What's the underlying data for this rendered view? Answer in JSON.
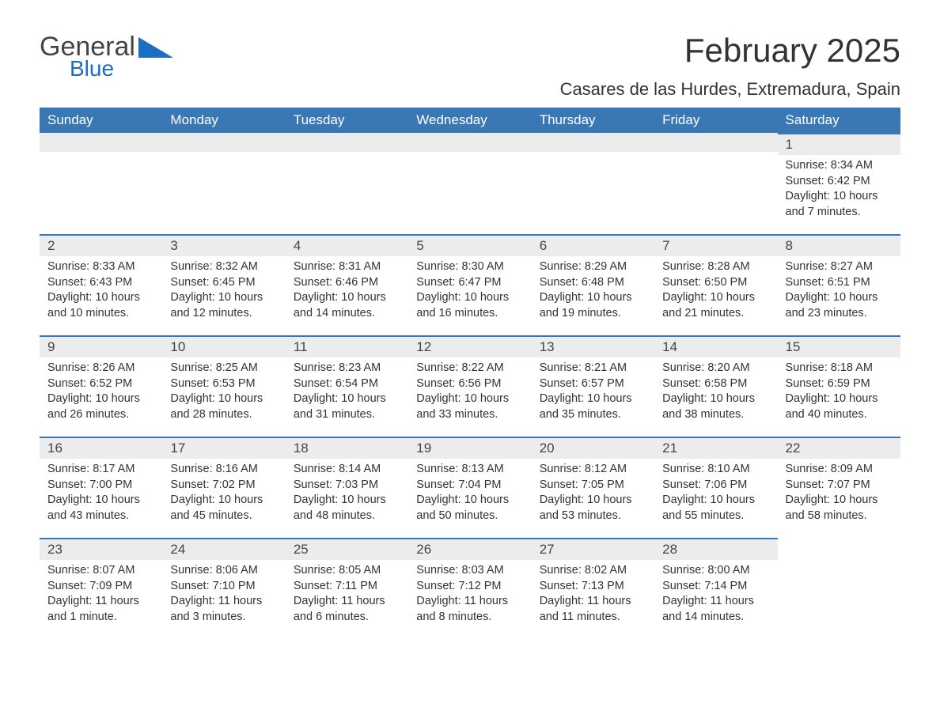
{
  "logo": {
    "text1": "General",
    "text2": "Blue",
    "brand_color": "#1b6ec2"
  },
  "title": "February 2025",
  "location": "Casares de las Hurdes, Extremadura, Spain",
  "colors": {
    "header_bg": "#3a78b5",
    "header_text": "#ffffff",
    "daynum_bg": "#ececec",
    "row_border": "#3a78b5",
    "body_text": "#333333"
  },
  "weekdays": [
    "Sunday",
    "Monday",
    "Tuesday",
    "Wednesday",
    "Thursday",
    "Friday",
    "Saturday"
  ],
  "leading_blanks": 6,
  "days": [
    {
      "n": "1",
      "sunrise": "Sunrise: 8:34 AM",
      "sunset": "Sunset: 6:42 PM",
      "daylight": "Daylight: 10 hours and 7 minutes."
    },
    {
      "n": "2",
      "sunrise": "Sunrise: 8:33 AM",
      "sunset": "Sunset: 6:43 PM",
      "daylight": "Daylight: 10 hours and 10 minutes."
    },
    {
      "n": "3",
      "sunrise": "Sunrise: 8:32 AM",
      "sunset": "Sunset: 6:45 PM",
      "daylight": "Daylight: 10 hours and 12 minutes."
    },
    {
      "n": "4",
      "sunrise": "Sunrise: 8:31 AM",
      "sunset": "Sunset: 6:46 PM",
      "daylight": "Daylight: 10 hours and 14 minutes."
    },
    {
      "n": "5",
      "sunrise": "Sunrise: 8:30 AM",
      "sunset": "Sunset: 6:47 PM",
      "daylight": "Daylight: 10 hours and 16 minutes."
    },
    {
      "n": "6",
      "sunrise": "Sunrise: 8:29 AM",
      "sunset": "Sunset: 6:48 PM",
      "daylight": "Daylight: 10 hours and 19 minutes."
    },
    {
      "n": "7",
      "sunrise": "Sunrise: 8:28 AM",
      "sunset": "Sunset: 6:50 PM",
      "daylight": "Daylight: 10 hours and 21 minutes."
    },
    {
      "n": "8",
      "sunrise": "Sunrise: 8:27 AM",
      "sunset": "Sunset: 6:51 PM",
      "daylight": "Daylight: 10 hours and 23 minutes."
    },
    {
      "n": "9",
      "sunrise": "Sunrise: 8:26 AM",
      "sunset": "Sunset: 6:52 PM",
      "daylight": "Daylight: 10 hours and 26 minutes."
    },
    {
      "n": "10",
      "sunrise": "Sunrise: 8:25 AM",
      "sunset": "Sunset: 6:53 PM",
      "daylight": "Daylight: 10 hours and 28 minutes."
    },
    {
      "n": "11",
      "sunrise": "Sunrise: 8:23 AM",
      "sunset": "Sunset: 6:54 PM",
      "daylight": "Daylight: 10 hours and 31 minutes."
    },
    {
      "n": "12",
      "sunrise": "Sunrise: 8:22 AM",
      "sunset": "Sunset: 6:56 PM",
      "daylight": "Daylight: 10 hours and 33 minutes."
    },
    {
      "n": "13",
      "sunrise": "Sunrise: 8:21 AM",
      "sunset": "Sunset: 6:57 PM",
      "daylight": "Daylight: 10 hours and 35 minutes."
    },
    {
      "n": "14",
      "sunrise": "Sunrise: 8:20 AM",
      "sunset": "Sunset: 6:58 PM",
      "daylight": "Daylight: 10 hours and 38 minutes."
    },
    {
      "n": "15",
      "sunrise": "Sunrise: 8:18 AM",
      "sunset": "Sunset: 6:59 PM",
      "daylight": "Daylight: 10 hours and 40 minutes."
    },
    {
      "n": "16",
      "sunrise": "Sunrise: 8:17 AM",
      "sunset": "Sunset: 7:00 PM",
      "daylight": "Daylight: 10 hours and 43 minutes."
    },
    {
      "n": "17",
      "sunrise": "Sunrise: 8:16 AM",
      "sunset": "Sunset: 7:02 PM",
      "daylight": "Daylight: 10 hours and 45 minutes."
    },
    {
      "n": "18",
      "sunrise": "Sunrise: 8:14 AM",
      "sunset": "Sunset: 7:03 PM",
      "daylight": "Daylight: 10 hours and 48 minutes."
    },
    {
      "n": "19",
      "sunrise": "Sunrise: 8:13 AM",
      "sunset": "Sunset: 7:04 PM",
      "daylight": "Daylight: 10 hours and 50 minutes."
    },
    {
      "n": "20",
      "sunrise": "Sunrise: 8:12 AM",
      "sunset": "Sunset: 7:05 PM",
      "daylight": "Daylight: 10 hours and 53 minutes."
    },
    {
      "n": "21",
      "sunrise": "Sunrise: 8:10 AM",
      "sunset": "Sunset: 7:06 PM",
      "daylight": "Daylight: 10 hours and 55 minutes."
    },
    {
      "n": "22",
      "sunrise": "Sunrise: 8:09 AM",
      "sunset": "Sunset: 7:07 PM",
      "daylight": "Daylight: 10 hours and 58 minutes."
    },
    {
      "n": "23",
      "sunrise": "Sunrise: 8:07 AM",
      "sunset": "Sunset: 7:09 PM",
      "daylight": "Daylight: 11 hours and 1 minute."
    },
    {
      "n": "24",
      "sunrise": "Sunrise: 8:06 AM",
      "sunset": "Sunset: 7:10 PM",
      "daylight": "Daylight: 11 hours and 3 minutes."
    },
    {
      "n": "25",
      "sunrise": "Sunrise: 8:05 AM",
      "sunset": "Sunset: 7:11 PM",
      "daylight": "Daylight: 11 hours and 6 minutes."
    },
    {
      "n": "26",
      "sunrise": "Sunrise: 8:03 AM",
      "sunset": "Sunset: 7:12 PM",
      "daylight": "Daylight: 11 hours and 8 minutes."
    },
    {
      "n": "27",
      "sunrise": "Sunrise: 8:02 AM",
      "sunset": "Sunset: 7:13 PM",
      "daylight": "Daylight: 11 hours and 11 minutes."
    },
    {
      "n": "28",
      "sunrise": "Sunrise: 8:00 AM",
      "sunset": "Sunset: 7:14 PM",
      "daylight": "Daylight: 11 hours and 14 minutes."
    }
  ]
}
